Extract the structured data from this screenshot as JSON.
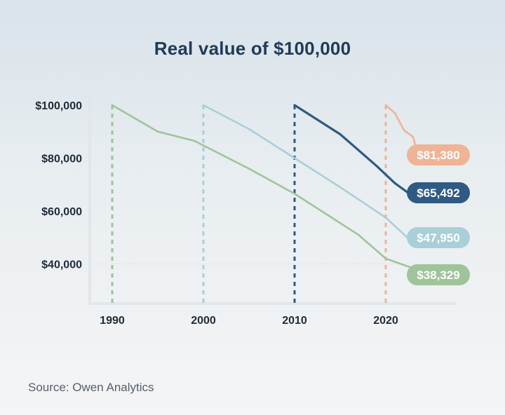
{
  "title": "Real value of $100,000",
  "source": "Source: Owen Analytics",
  "colors": {
    "s1990": "#9fc39a",
    "s2000": "#a9cfd8",
    "s2010": "#2e5a83",
    "s2020": "#efb396",
    "axis": "#e3e6e8",
    "grid": "#ebe9e4"
  },
  "chart_data": {
    "type": "line",
    "title": "Real value of $100,000",
    "xlabel": "",
    "ylabel": "",
    "xlim": [
      1990,
      2026
    ],
    "ylim": [
      25000,
      100000
    ],
    "x_ticks": [
      1990,
      2000,
      2010,
      2020
    ],
    "x_tick_labels": [
      "1990",
      "2000",
      "2010",
      "2020"
    ],
    "y_ticks": [
      100000,
      80000,
      60000,
      40000
    ],
    "y_tick_labels": [
      "$100,000",
      "$80,000",
      "$60,000",
      "$40,000"
    ],
    "grid": false,
    "start_markers": [
      1990,
      2000,
      2010,
      2020
    ],
    "series": [
      {
        "start": 1990,
        "color": "#9fc39a",
        "label": "$38,329",
        "points": [
          [
            1990,
            100000
          ],
          [
            1995,
            90000
          ],
          [
            1999,
            86500
          ],
          [
            2005,
            76000
          ],
          [
            2010,
            66500
          ],
          [
            2017,
            51000
          ],
          [
            2020,
            42000
          ],
          [
            2023,
            38329
          ]
        ]
      },
      {
        "start": 2000,
        "color": "#a9cfd8",
        "label": "$47,950",
        "points": [
          [
            2000,
            100000
          ],
          [
            2005,
            91000
          ],
          [
            2010,
            80000
          ],
          [
            2015,
            69000
          ],
          [
            2020,
            57500
          ],
          [
            2023,
            47950
          ]
        ]
      },
      {
        "start": 2010,
        "color": "#2e5a83",
        "label": "$65,492",
        "points": [
          [
            2010,
            100000
          ],
          [
            2015,
            89000
          ],
          [
            2019,
            77000
          ],
          [
            2021,
            70500
          ],
          [
            2023,
            65492
          ]
        ]
      },
      {
        "start": 2020,
        "color": "#efb396",
        "label": "$81,380",
        "points": [
          [
            2020,
            100000
          ],
          [
            2021,
            97000
          ],
          [
            2022,
            90500
          ],
          [
            2023,
            88000
          ],
          [
            2023.5,
            81380
          ]
        ]
      }
    ]
  }
}
